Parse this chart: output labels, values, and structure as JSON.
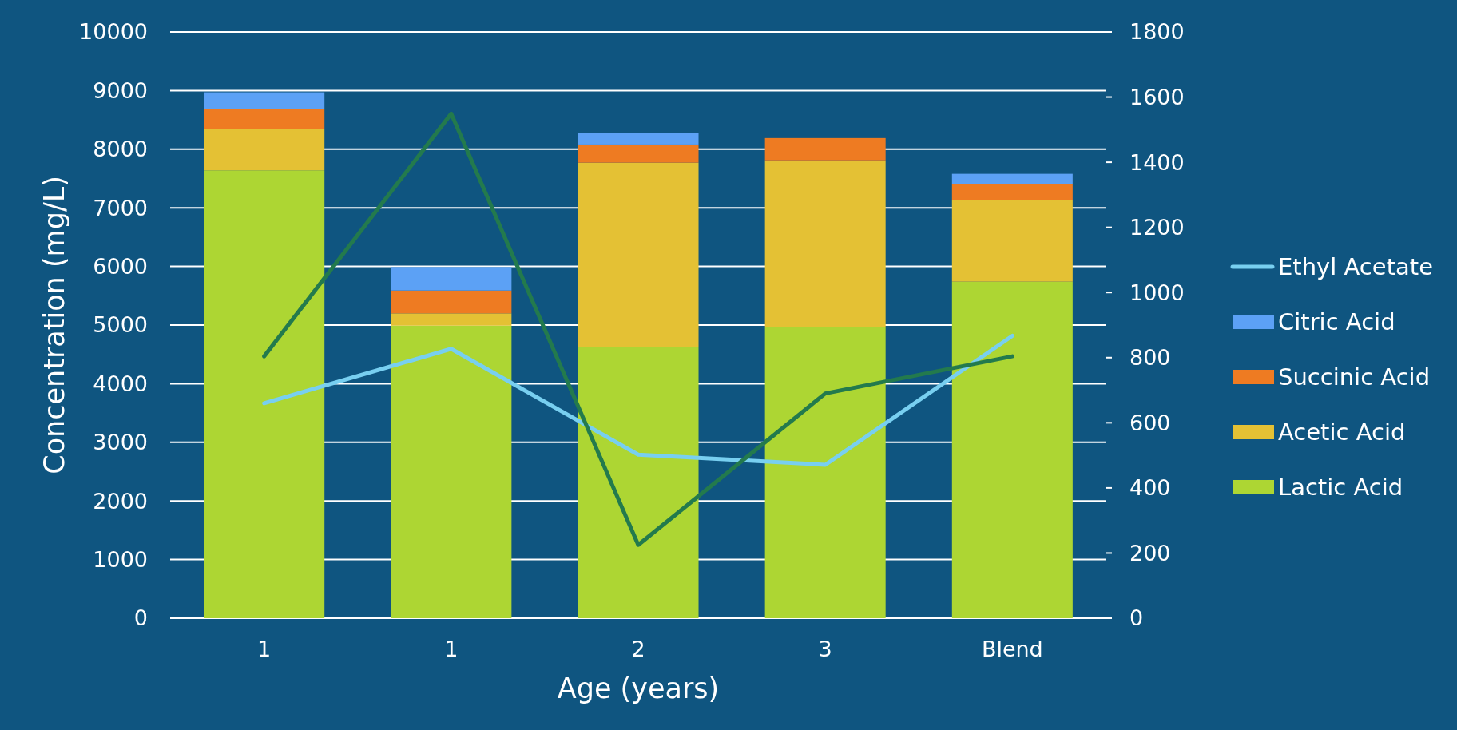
{
  "chart_data": {
    "type": "bar",
    "stacked": true,
    "xlabel": "Age (years)",
    "ylabel": "Concentration (mg/L)",
    "categories": [
      "1",
      "1",
      "2",
      "3",
      "Blend"
    ],
    "ylim": [
      0,
      10000
    ],
    "yticks": [
      0,
      1000,
      2000,
      3000,
      4000,
      5000,
      6000,
      7000,
      8000,
      9000,
      10000
    ],
    "y2lim": [
      0,
      1800
    ],
    "y2ticks": [
      0,
      200,
      400,
      600,
      800,
      1000,
      1200,
      1400,
      1600,
      1800
    ],
    "grid": "y",
    "legend": "right",
    "series": [
      {
        "name": "Lactic Acid",
        "color": "#add633",
        "values": [
          7640,
          4990,
          4630,
          4960,
          5740
        ]
      },
      {
        "name": "Acetic Acid",
        "color": "#e4c134",
        "values": [
          700,
          210,
          3140,
          2850,
          1390
        ]
      },
      {
        "name": "Succinic Acid",
        "color": "#ee7b22",
        "values": [
          340,
          390,
          310,
          380,
          270
        ]
      },
      {
        "name": "Citric Acid",
        "color": "#5ca1f5",
        "values": [
          290,
          400,
          190,
          0,
          180
        ]
      },
      {
        "name": "Ethyl Acetate",
        "type": "line",
        "axis": "y2",
        "color": "#78cff0",
        "values": [
          660,
          827,
          502,
          471,
          867
        ]
      },
      {
        "type": "line",
        "axis": "y2",
        "color": "#237a4d",
        "values": [
          804,
          1549,
          225,
          690,
          804
        ]
      }
    ]
  }
}
